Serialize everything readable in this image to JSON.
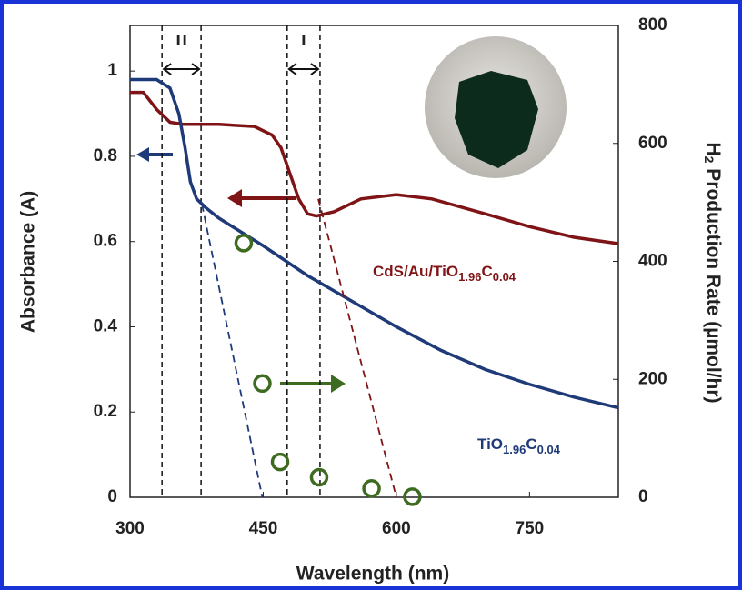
{
  "chart_data": {
    "type": "line",
    "xlabel": "Wavelength (nm)",
    "ylabel": "Absorbance (A)",
    "y2label_parts": [
      "H",
      "2",
      " Production Rate (µmol/hr)"
    ],
    "xlim": [
      300,
      850
    ],
    "xticks": [
      300,
      450,
      600,
      750
    ],
    "ylim": [
      0,
      1.107
    ],
    "yticks": [
      0,
      0.2,
      0.4,
      0.6,
      0.8,
      1
    ],
    "y2lim": [
      0,
      800
    ],
    "y2ticks": [
      0,
      200,
      400,
      600,
      800
    ],
    "series": [
      {
        "label_parts": [
          "CdS/Au/TiO",
          "1.96",
          "C",
          "0.04"
        ],
        "color": "#7f1416",
        "x": [
          300,
          315,
          330,
          345,
          360,
          400,
          440,
          460,
          470,
          480,
          490,
          500,
          510,
          530,
          560,
          600,
          640,
          700,
          750,
          800,
          850
        ],
        "values": [
          0.95,
          0.95,
          0.91,
          0.88,
          0.875,
          0.875,
          0.87,
          0.85,
          0.82,
          0.76,
          0.7,
          0.665,
          0.66,
          0.67,
          0.7,
          0.71,
          0.7,
          0.665,
          0.635,
          0.61,
          0.595
        ]
      },
      {
        "label_parts": [
          "TiO",
          "1.96",
          "C",
          "0.04"
        ],
        "color": "#1e3a78",
        "x": [
          300,
          330,
          345,
          355,
          362,
          368,
          375,
          385,
          400,
          450,
          500,
          550,
          600,
          650,
          700,
          750,
          800,
          850
        ],
        "values": [
          0.98,
          0.98,
          0.96,
          0.9,
          0.82,
          0.74,
          0.7,
          0.68,
          0.655,
          0.59,
          0.52,
          0.46,
          0.4,
          0.345,
          0.3,
          0.265,
          0.235,
          0.21
        ]
      },
      {
        "color": "#1e3a78",
        "dashed": true,
        "x": [
          381,
          449
        ],
        "values": [
          0.687,
          0
        ]
      },
      {
        "color": "#7f1416",
        "dashed": true,
        "x": [
          512,
          600
        ],
        "values": [
          0.7,
          0
        ]
      },
      {
        "type": "scatter",
        "axis": "y2",
        "color": "#3d6b1f",
        "x": [
          428,
          449,
          469,
          513,
          572,
          618
        ],
        "values": [
          431,
          193,
          60,
          34,
          15,
          1
        ]
      }
    ],
    "region_lines": [
      336,
      380,
      477,
      514
    ],
    "region_labels": [
      "II",
      "I"
    ]
  }
}
